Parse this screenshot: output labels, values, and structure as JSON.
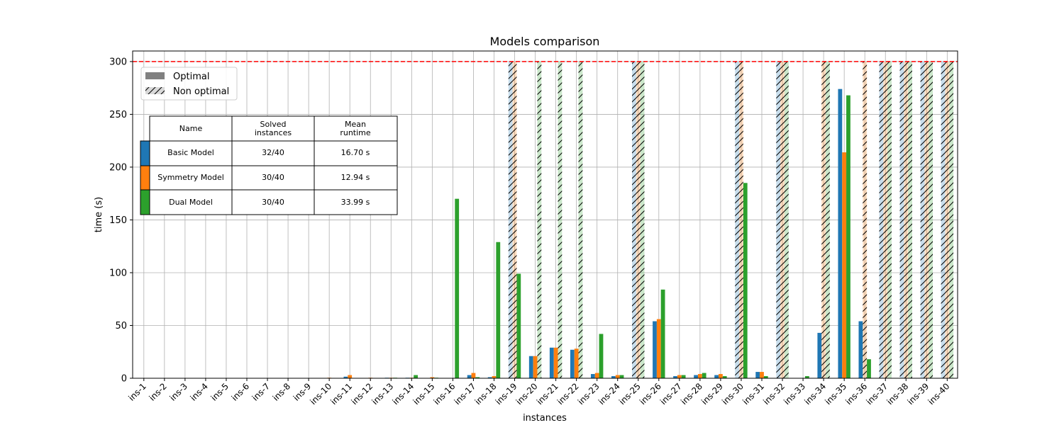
{
  "chart_data": {
    "type": "bar",
    "title": "Models comparison",
    "xlabel": "instances",
    "ylabel": "time (s)",
    "ylim": [
      0,
      310
    ],
    "yticks": [
      0,
      50,
      100,
      150,
      200,
      250,
      300
    ],
    "grid": true,
    "timeout_line": 300,
    "timeout_line_color": "#ff0000",
    "categories": [
      "ins-1",
      "ins-2",
      "ins-3",
      "ins-4",
      "ins-5",
      "ins-6",
      "ins-7",
      "ins-8",
      "ins-9",
      "ins-10",
      "ins-11",
      "ins-12",
      "ins-13",
      "ins-14",
      "ins-15",
      "ins-16",
      "ins-17",
      "ins-18",
      "ins-19",
      "ins-20",
      "ins-21",
      "ins-22",
      "ins-23",
      "ins-24",
      "ins-25",
      "ins-26",
      "ins-27",
      "ins-28",
      "ins-29",
      "ins-30",
      "ins-31",
      "ins-32",
      "ins-33",
      "ins-34",
      "ins-35",
      "ins-36",
      "ins-37",
      "ins-38",
      "ins-39",
      "ins-40"
    ],
    "series": [
      {
        "name": "Basic Model",
        "color": "#1f77b4",
        "values": [
          0,
          0,
          0,
          0,
          0,
          0,
          0,
          0,
          0,
          0,
          1.5,
          0,
          0.5,
          0.5,
          0,
          0,
          3,
          1,
          300,
          21,
          29,
          27,
          4,
          2,
          300,
          54,
          2,
          3,
          3,
          300,
          6,
          300,
          0,
          43,
          274,
          54,
          300,
          300,
          300,
          300
        ],
        "optimal": [
          true,
          true,
          true,
          true,
          true,
          true,
          true,
          true,
          true,
          true,
          true,
          true,
          true,
          true,
          true,
          true,
          true,
          true,
          false,
          true,
          true,
          true,
          true,
          true,
          false,
          true,
          true,
          true,
          true,
          false,
          true,
          false,
          true,
          true,
          true,
          true,
          false,
          false,
          false,
          false
        ]
      },
      {
        "name": "Symmetry Model",
        "color": "#ff7f0e",
        "values": [
          0,
          0,
          0,
          0,
          0,
          0,
          0,
          0,
          0,
          0.5,
          3,
          0.5,
          0.5,
          0.5,
          1,
          0,
          5,
          2,
          300,
          21,
          29,
          28,
          5,
          3,
          300,
          56,
          3,
          4,
          4,
          300,
          6,
          300,
          0,
          300,
          214,
          300,
          300,
          300,
          300,
          300
        ],
        "optimal": [
          true,
          true,
          true,
          true,
          true,
          true,
          true,
          true,
          true,
          true,
          true,
          true,
          true,
          true,
          true,
          true,
          true,
          true,
          false,
          true,
          true,
          true,
          true,
          true,
          false,
          true,
          true,
          true,
          true,
          false,
          true,
          false,
          true,
          false,
          true,
          false,
          false,
          false,
          false,
          false
        ]
      },
      {
        "name": "Dual Model",
        "color": "#2ca02c",
        "values": [
          0,
          0,
          0,
          0,
          0,
          0,
          0,
          0,
          0,
          0,
          0,
          0,
          0.5,
          3,
          0.5,
          170,
          1,
          129,
          99,
          300,
          300,
          300,
          42,
          3,
          300,
          84,
          3,
          5,
          2,
          185,
          2,
          300,
          2,
          300,
          268,
          18,
          300,
          300,
          300,
          300
        ],
        "optimal": [
          true,
          true,
          true,
          true,
          true,
          true,
          true,
          true,
          true,
          true,
          true,
          true,
          true,
          true,
          true,
          true,
          true,
          true,
          true,
          false,
          false,
          false,
          true,
          true,
          false,
          true,
          true,
          true,
          true,
          true,
          true,
          false,
          true,
          false,
          true,
          true,
          false,
          false,
          false,
          false
        ]
      }
    ],
    "legend": {
      "placement": "top-left",
      "items": [
        {
          "label": "Optimal",
          "style": "solid",
          "color": "#808080"
        },
        {
          "label": "Non optimal",
          "style": "hatched",
          "color": "#d9d9d9"
        }
      ]
    },
    "summary_table": {
      "headers": [
        "Name",
        "Solved\ninstances",
        "Mean\nruntime"
      ],
      "rows": [
        {
          "color": "#1f77b4",
          "name": "Basic Model",
          "solved": "32/40",
          "runtime": "16.70 s"
        },
        {
          "color": "#ff7f0e",
          "name": "Symmetry Model",
          "solved": "30/40",
          "runtime": "12.94 s"
        },
        {
          "color": "#2ca02c",
          "name": "Dual Model",
          "solved": "30/40",
          "runtime": "33.99 s"
        }
      ]
    }
  }
}
